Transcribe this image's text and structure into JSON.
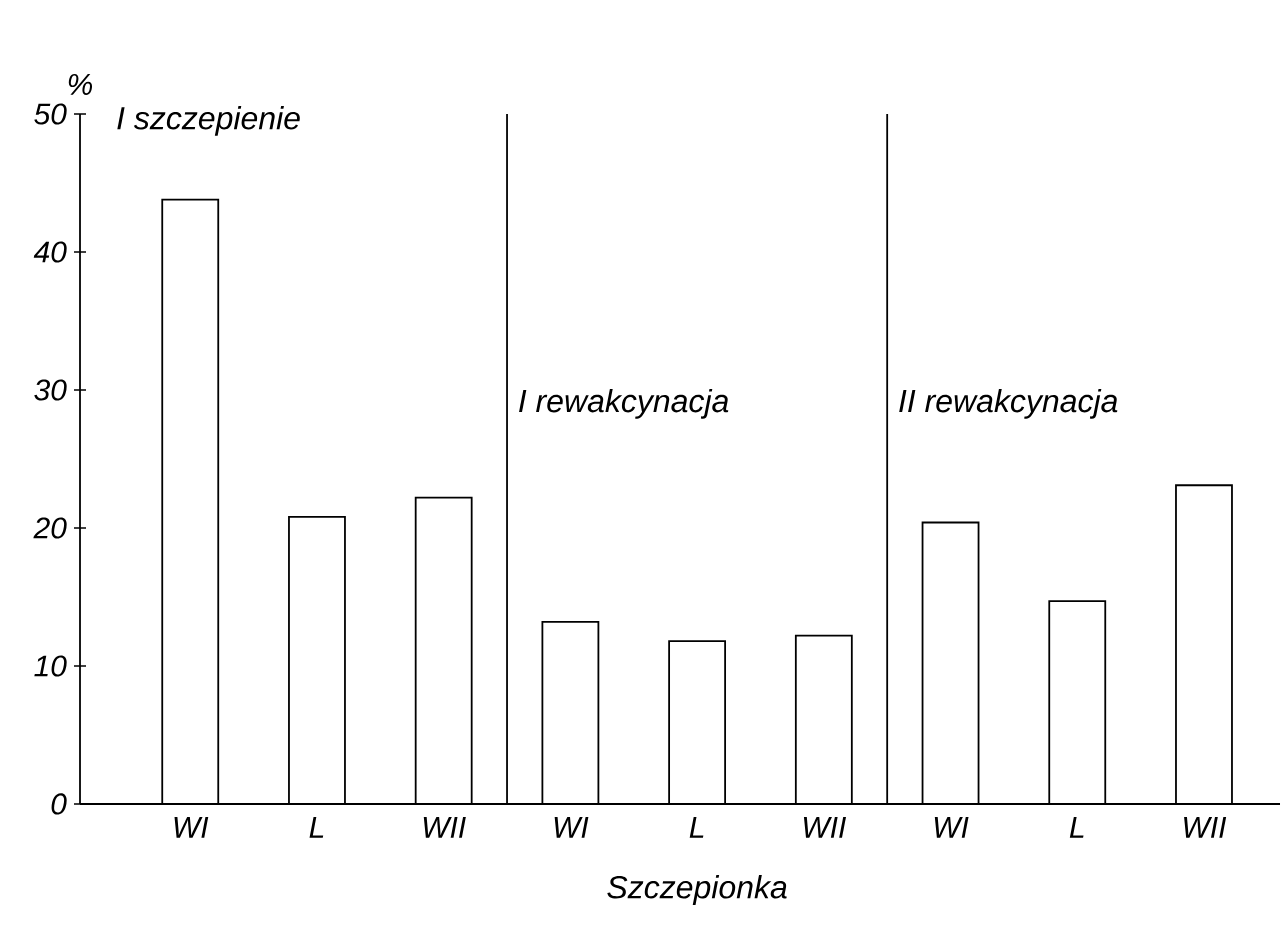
{
  "chart_data": {
    "type": "bar",
    "xlabel": "Szczepionka",
    "ylabel": "%",
    "categories": [
      "WI",
      "L",
      "WII",
      "WI",
      "L",
      "WII",
      "WI",
      "L",
      "WII"
    ],
    "values": [
      43.8,
      20.8,
      22.2,
      13.2,
      11.8,
      12.2,
      20.4,
      14.7,
      23.1
    ],
    "color": "#ffffff",
    "ylim": [
      0,
      50
    ],
    "yticks": [
      0,
      10,
      20,
      30,
      40,
      50
    ],
    "annotations": [
      "I szczepienie",
      "I rewakcynacja",
      "II rewakcynacja"
    ],
    "grid": false
  }
}
